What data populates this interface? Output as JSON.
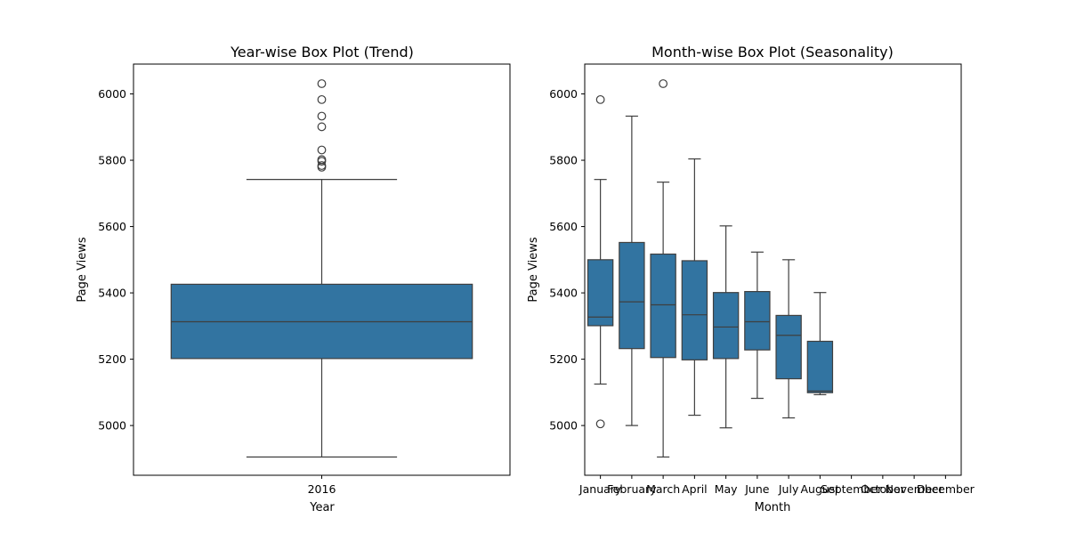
{
  "chart_data": [
    {
      "type": "box",
      "title": "Year-wise Box Plot (Trend)",
      "xlabel": "Year",
      "ylabel": "Page Views",
      "ylim": [
        4850,
        6090
      ],
      "yticks": [
        5000,
        5200,
        5400,
        5600,
        5800,
        6000
      ],
      "categories": [
        "2016"
      ],
      "boxes": [
        {
          "category": "2016",
          "whisker_low": 4905,
          "q1": 5202,
          "median": 5313,
          "q3": 5426,
          "whisker_high": 5742,
          "outliers": [
            5779,
            5784,
            5797,
            5802,
            5831,
            5901,
            5933,
            5983,
            6031
          ]
        }
      ],
      "color": "#3274a1"
    },
    {
      "type": "box",
      "title": "Month-wise Box Plot (Seasonality)",
      "xlabel": "Month",
      "ylabel": "Page Views",
      "ylim": [
        4850,
        6090
      ],
      "yticks": [
        5000,
        5200,
        5400,
        5600,
        5800,
        6000
      ],
      "categories": [
        "January",
        "February",
        "March",
        "April",
        "May",
        "June",
        "July",
        "August",
        "September",
        "October",
        "November",
        "December"
      ],
      "boxes": [
        {
          "category": "January",
          "whisker_low": 5125,
          "q1": 5301,
          "median": 5327,
          "q3": 5500,
          "whisker_high": 5742,
          "outliers": [
            5005,
            5983
          ]
        },
        {
          "category": "February",
          "whisker_low": 5000,
          "q1": 5232,
          "median": 5373,
          "q3": 5552,
          "whisker_high": 5933,
          "outliers": []
        },
        {
          "category": "March",
          "whisker_low": 4905,
          "q1": 5205,
          "median": 5364,
          "q3": 5517,
          "whisker_high": 5734,
          "outliers": [
            6031
          ]
        },
        {
          "category": "April",
          "whisker_low": 5031,
          "q1": 5198,
          "median": 5334,
          "q3": 5497,
          "whisker_high": 5804,
          "outliers": []
        },
        {
          "category": "May",
          "whisker_low": 4993,
          "q1": 5202,
          "median": 5297,
          "q3": 5401,
          "whisker_high": 5602,
          "outliers": []
        },
        {
          "category": "June",
          "whisker_low": 5082,
          "q1": 5228,
          "median": 5313,
          "q3": 5404,
          "whisker_high": 5523,
          "outliers": []
        },
        {
          "category": "July",
          "whisker_low": 5023,
          "q1": 5141,
          "median": 5272,
          "q3": 5332,
          "whisker_high": 5500,
          "outliers": []
        },
        {
          "category": "August",
          "whisker_low": 5093,
          "q1": 5099,
          "median": 5104,
          "q3": 5254,
          "whisker_high": 5401,
          "outliers": []
        }
      ],
      "color": "#3274a1"
    }
  ]
}
